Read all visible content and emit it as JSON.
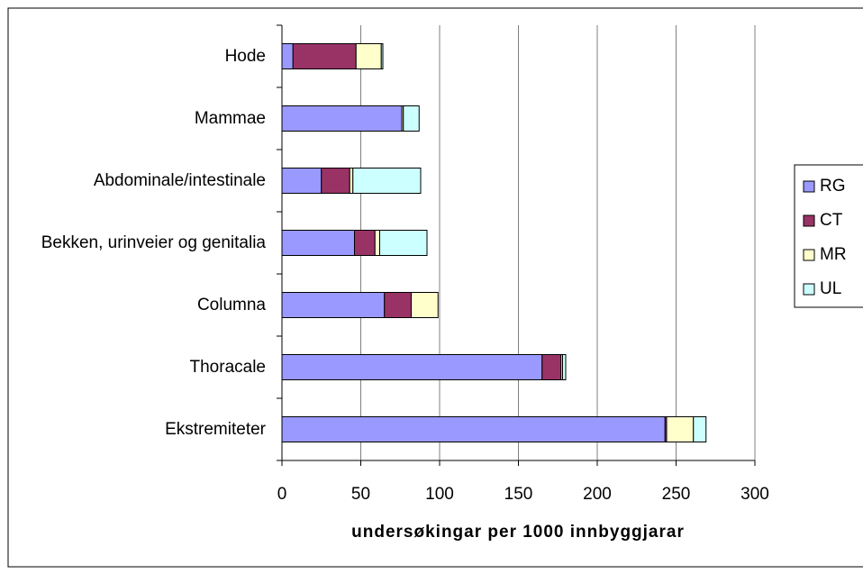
{
  "chart_data": {
    "type": "stacked_barh",
    "categories": [
      "Hode",
      "Mammae",
      "Abdominale/intestinale",
      "Bekken, urinveier og genitalia",
      "Columna",
      "Thoracale",
      "Ekstremiteter"
    ],
    "series": [
      {
        "name": "RG",
        "color": "#9999ff",
        "values": [
          7,
          76,
          25,
          46,
          65,
          165,
          243
        ]
      },
      {
        "name": "CT",
        "color": "#993366",
        "values": [
          40,
          0,
          18,
          13,
          17,
          12,
          1
        ]
      },
      {
        "name": "MR",
        "color": "#ffffcc",
        "values": [
          16,
          1,
          2,
          3,
          17,
          1,
          17
        ]
      },
      {
        "name": "UL",
        "color": "#ccffff",
        "values": [
          1,
          10,
          43,
          30,
          0,
          2,
          8
        ]
      }
    ],
    "xlabel": "undersøkingar per 1000 innbyggjarar",
    "xlim": [
      0,
      300
    ],
    "xticks": [
      0,
      50,
      100,
      150,
      200,
      250,
      300
    ],
    "grid": true,
    "legend": "right"
  }
}
